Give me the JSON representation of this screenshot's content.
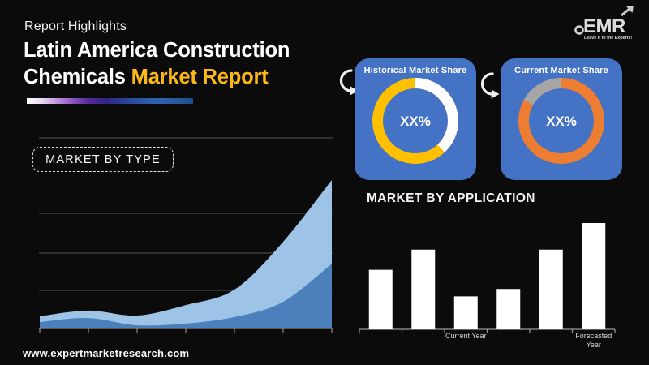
{
  "page": {
    "background": "#0b0b0b",
    "footer_url": "www.expertmarketresearch.com"
  },
  "header": {
    "eyebrow": "Report Highlights",
    "title_line1": "Latin America Construction",
    "title_line2_white": "Chemicals",
    "title_line2_accent": "Market Report",
    "accent_color": "#FDB913"
  },
  "logo": {
    "text": "EMR",
    "tagline": "Leave it to the Experts!"
  },
  "cards": {
    "background_color": "#4472C4"
  },
  "chart_data": [
    {
      "type": "area",
      "title": "MARKET BY TYPE",
      "x": [
        1,
        2,
        3,
        4,
        5,
        6,
        7
      ],
      "x_tick_labels": [
        "",
        "",
        "",
        "",
        "",
        "",
        ""
      ],
      "ylim": [
        0,
        100
      ],
      "grid": "horizontal",
      "legend": "none",
      "series": [
        {
          "name": "total-market",
          "color": "#9DC3E6",
          "values": [
            6.4,
            9.4,
            6.8,
            12.3,
            20.4,
            45.5,
            77.9
          ]
        },
        {
          "name": "segment-base",
          "color": "#4B80BC",
          "values": [
            3.4,
            5.5,
            1.7,
            2.6,
            6.0,
            14.0,
            34.0
          ]
        }
      ]
    },
    {
      "type": "donut",
      "title": "Historical Market Share",
      "center_label": "XX%",
      "slices": [
        {
          "name": "market-share",
          "value": 62,
          "color": "#FFC000"
        },
        {
          "name": "remainder",
          "value": 38,
          "color": "#FFFFFF"
        }
      ],
      "remainder_anchor": "from-top"
    },
    {
      "type": "donut",
      "title": "Current Market Share",
      "center_label": "XX%",
      "slices": [
        {
          "name": "market-share",
          "value": 83,
          "color": "#ED7D31"
        },
        {
          "name": "remainder",
          "value": 17,
          "color": "#A6A6A6"
        }
      ],
      "remainder_anchor": "to-top"
    },
    {
      "type": "bar",
      "title": "MARKET BY APPLICATION",
      "values": [
        56,
        75,
        31,
        38,
        75,
        100
      ],
      "ylim": [
        0,
        100
      ],
      "bar_color": "#FFFFFF",
      "x_labels": [
        {
          "slot": 3,
          "lines": [
            "Current Year"
          ]
        },
        {
          "slot": 6,
          "lines": [
            "Forecasted",
            "Year"
          ]
        }
      ]
    }
  ]
}
